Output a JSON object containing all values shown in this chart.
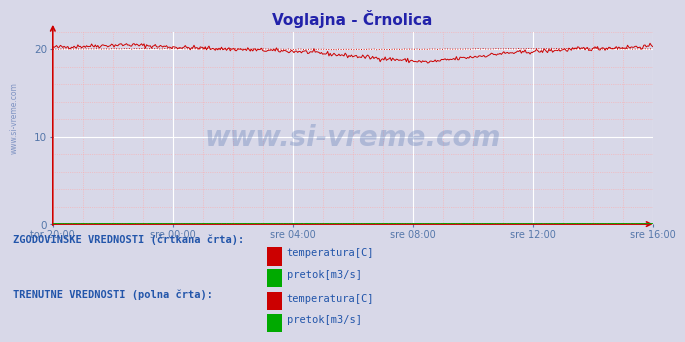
{
  "title": "Voglajna - Črnolica",
  "title_color": "#2222aa",
  "title_fontsize": 11,
  "bg_color": "#d8d8e8",
  "plot_bg_color": "#d8d8e8",
  "grid_color_white": "#ffffff",
  "grid_color_pink": "#ffaaaa",
  "tick_color": "#5577aa",
  "watermark_text": "www.si-vreme.com",
  "watermark_color": "#4466aa",
  "watermark_alpha": 0.28,
  "xticklabels": [
    "tor 20:00",
    "sre 00:00",
    "sre 04:00",
    "sre 08:00",
    "sre 12:00",
    "sre 16:00"
  ],
  "xtick_positions": [
    0,
    96,
    192,
    288,
    384,
    480
  ],
  "yticks": [
    0,
    10,
    20
  ],
  "ylim": [
    0,
    22
  ],
  "xlim": [
    0,
    480
  ],
  "temp_color": "#cc0000",
  "flow_color": "#00aa00",
  "n_points": 481,
  "flow_value": 0.05,
  "legend_text_color": "#2255aa",
  "legend_label_color": "#2255aa",
  "axis_arrow_color": "#cc0000",
  "left_label": "www.si-vreme.com",
  "historic_label": "ZGODOVINSKE VREDNOSTI (črtkana črta):",
  "current_label": "TRENUTNE VREDNOSTI (polna črta):",
  "legend_items": [
    "temperatura[C]",
    "pretok[m3/s]"
  ]
}
